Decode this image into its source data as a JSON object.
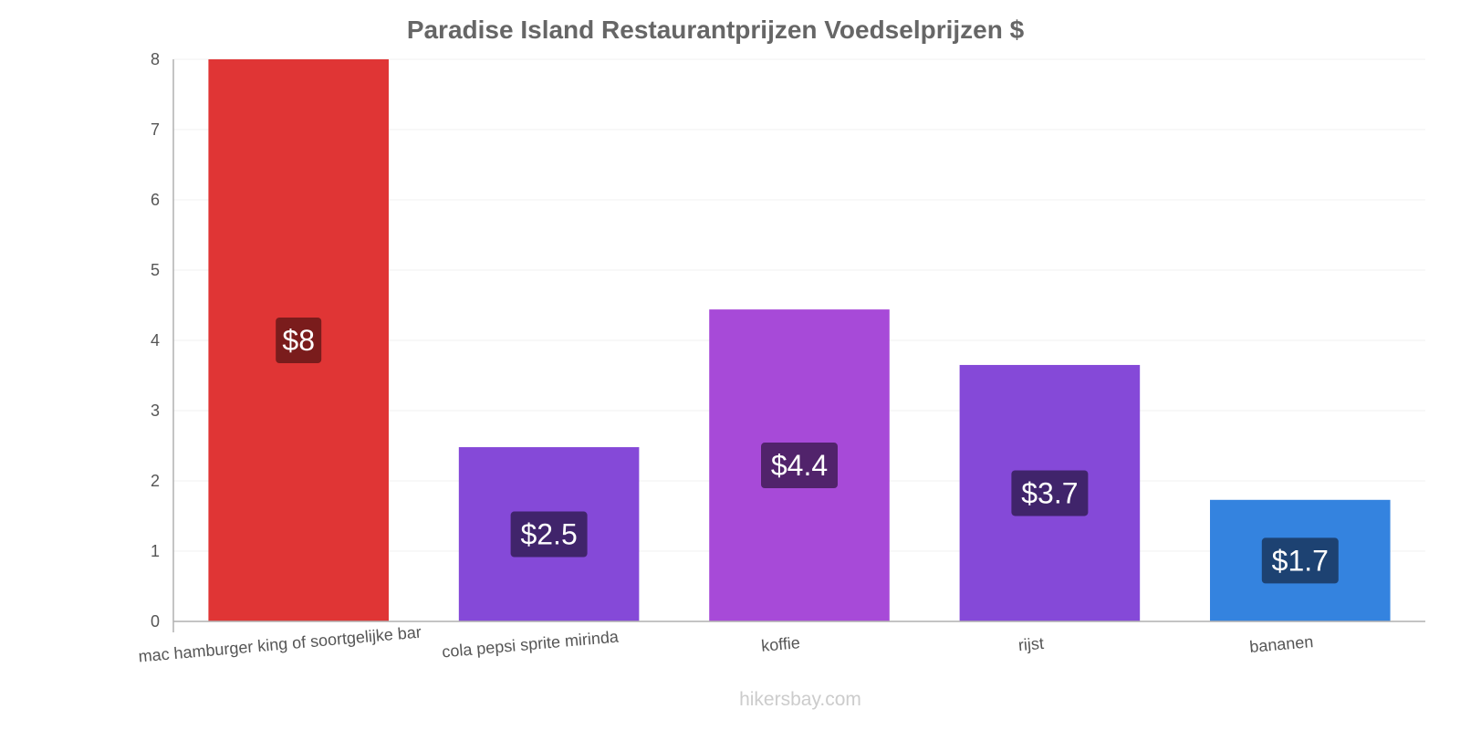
{
  "chart_data": {
    "type": "bar",
    "title": "Paradise Island Restaurantprijzen Voedselprijzen $",
    "categories": [
      "mac hamburger king of soortgelijke bar",
      "cola pepsi sprite mirinda",
      "koffie",
      "rijst",
      "bananen"
    ],
    "values": [
      8,
      2.48,
      4.44,
      3.65,
      1.73
    ],
    "value_labels": [
      "$8",
      "$2.5",
      "$4.4",
      "$3.7",
      "$1.7"
    ],
    "bar_colors": [
      "#e03535",
      "#8549d8",
      "#a74ad8",
      "#8549d8",
      "#3483df"
    ],
    "label_box_colors": [
      "#7a1c1c",
      "#40246b",
      "#51236b",
      "#40246b",
      "#1d4272"
    ],
    "yticks": [
      "0",
      "1",
      "2",
      "3",
      "4",
      "5",
      "6",
      "7",
      "8"
    ],
    "ylim": [
      0,
      8
    ],
    "xlabel": "",
    "ylabel": "",
    "grid": true,
    "legend": "none"
  },
  "footer": "hikersbay.com"
}
